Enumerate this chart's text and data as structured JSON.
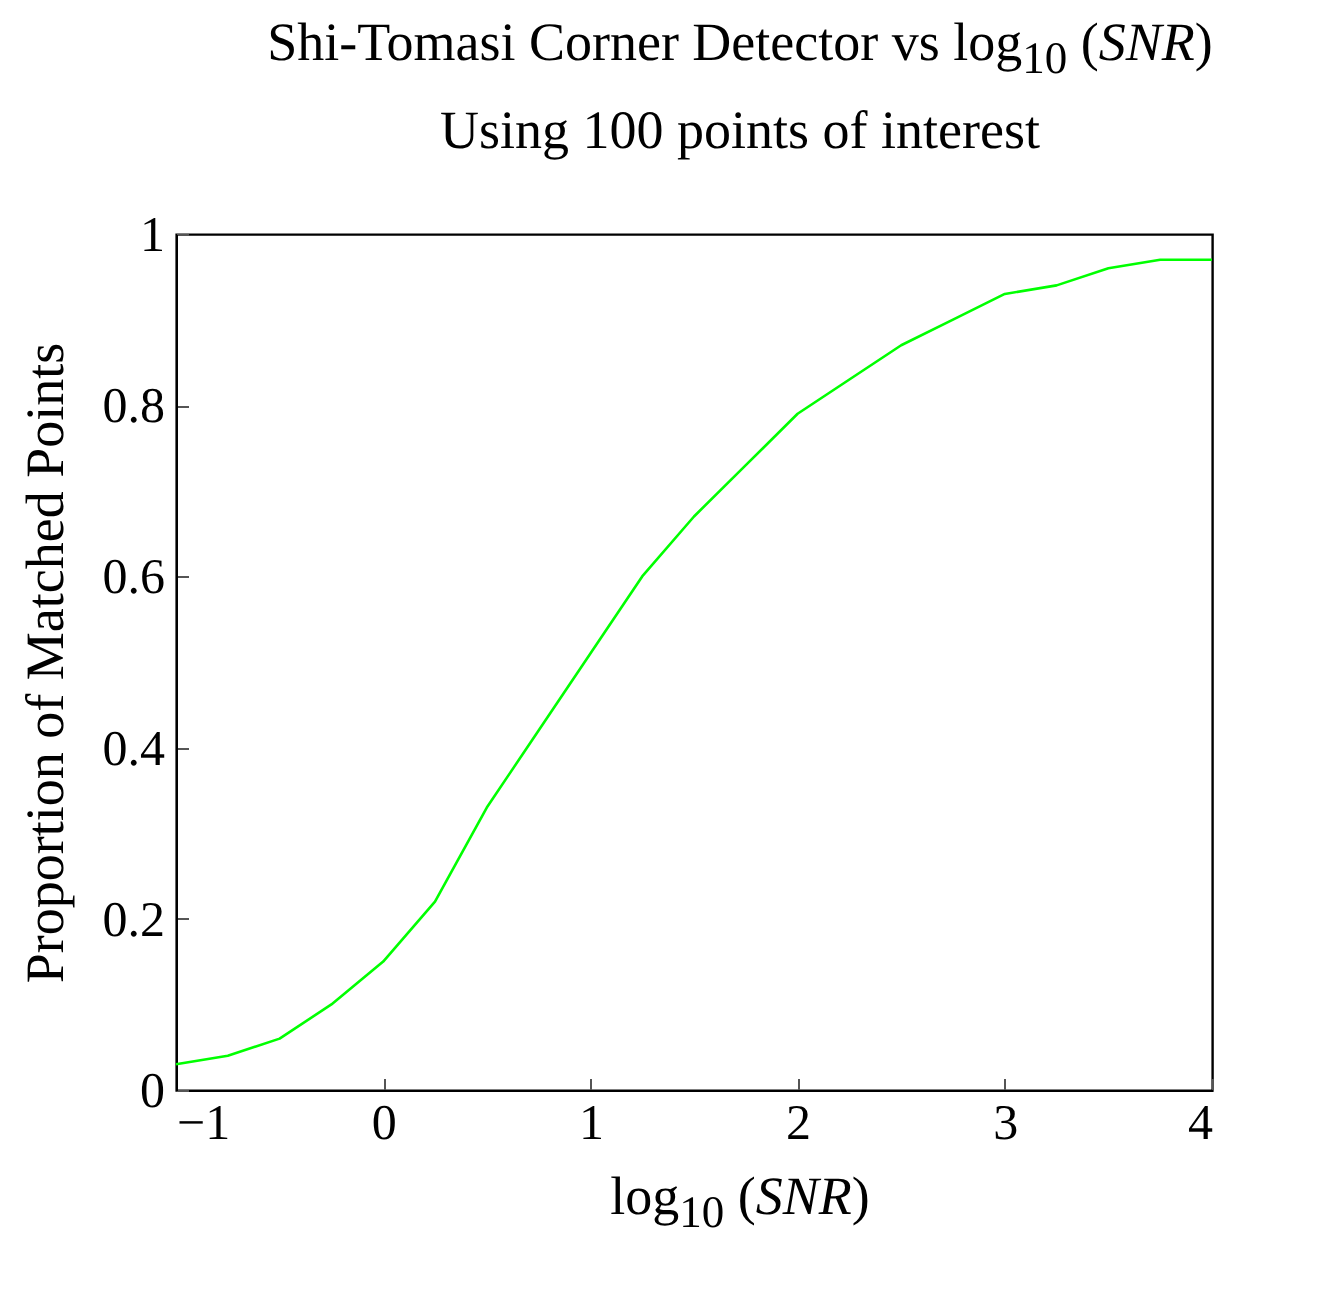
{
  "chart_data": {
    "type": "line",
    "title": "Shi-Tomasi Corner Detector vs log$_{10}$ (SNR)",
    "subtitle": "Using 100 points of interest",
    "xlabel": "log$_{10}$ (SNR)",
    "ylabel": "Proportion of Matched Points",
    "x": [
      -1,
      -0.75,
      -0.5,
      -0.25,
      0,
      0.25,
      0.5,
      0.75,
      1,
      1.25,
      1.5,
      1.75,
      2,
      2.25,
      2.5,
      2.75,
      3,
      3.25,
      3.5,
      3.75,
      4
    ],
    "series": [
      {
        "color": "#00ff00",
        "values": [
          0.03,
          0.04,
          0.06,
          0.1,
          0.15,
          0.22,
          0.33,
          0.42,
          0.51,
          0.6,
          0.67,
          0.73,
          0.79,
          0.83,
          0.87,
          0.9,
          0.93,
          0.94,
          0.96,
          0.97,
          0.97
        ]
      }
    ],
    "xlim": [
      -1,
      4
    ],
    "xticks": [
      -1,
      0,
      1,
      2,
      3,
      4
    ],
    "ylim": [
      0,
      1
    ],
    "yticks": [
      0,
      0.2,
      0.4,
      0.6,
      0.8,
      1
    ],
    "grid": false,
    "marker": "none",
    "line_style": "solid"
  }
}
